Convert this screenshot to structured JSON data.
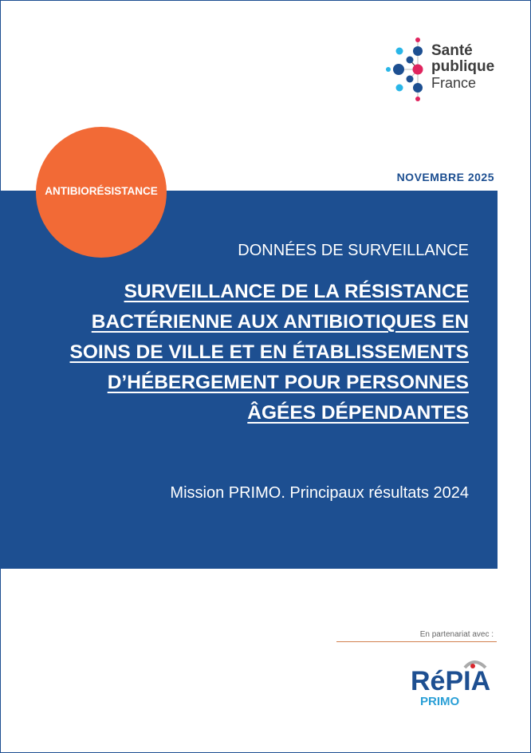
{
  "publisher": {
    "logo_line1": "Santé",
    "logo_line2": "publique",
    "logo_line3": "France"
  },
  "date": "NOVEMBRE 2025",
  "theme_badge": "ANTIBIORÉSISTANCE",
  "kicker": "DONNÉES DE SURVEILLANCE",
  "title_lines": [
    "SURVEILLANCE DE LA RÉSISTANCE",
    "BACTÉRIENNE AUX ANTIBIOTIQUES EN",
    "SOINS DE VILLE ET EN ÉTABLISSEMENTS",
    "D’HÉBERGEMENT POUR PERSONNES",
    "ÂGÉES DÉPENDANTES"
  ],
  "subtitle": "Mission PRIMO. Principaux résultats 2024",
  "partner_label": "En partenariat avec :",
  "partner_logo": {
    "name": "RéPIA",
    "sub": "PRIMO"
  },
  "colors": {
    "brand_blue": "#1d4f91",
    "accent_orange": "#f26a36",
    "logo_pink": "#e0245e",
    "logo_cyan": "#29b6e8"
  }
}
